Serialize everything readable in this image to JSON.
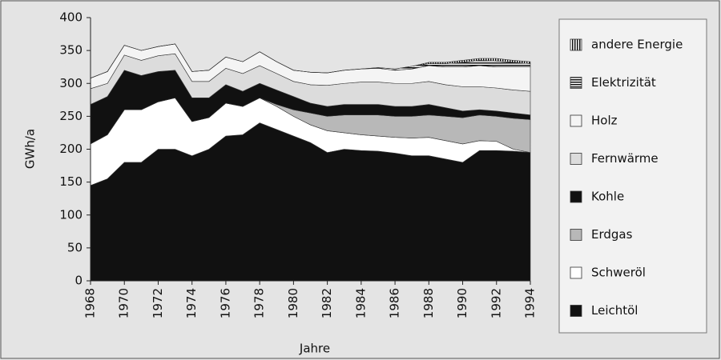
{
  "chart_data": {
    "type": "stacked_area",
    "x_label": "Jahre",
    "y_label": "GWh/a",
    "x": [
      1968,
      1969,
      1970,
      1971,
      1972,
      1973,
      1974,
      1975,
      1976,
      1977,
      1978,
      1979,
      1980,
      1981,
      1982,
      1983,
      1984,
      1985,
      1986,
      1987,
      1988,
      1989,
      1990,
      1991,
      1992,
      1993,
      1994
    ],
    "xlim": [
      1968,
      1994
    ],
    "xticks": [
      1968,
      1970,
      1972,
      1974,
      1976,
      1978,
      1980,
      1982,
      1984,
      1986,
      1988,
      1990,
      1992,
      1994
    ],
    "ylim": [
      0,
      400
    ],
    "yticks": [
      0,
      50,
      100,
      150,
      200,
      250,
      300,
      350,
      400
    ],
    "series": [
      {
        "name": "Leichtöl",
        "color": "#111111",
        "values": [
          145,
          155,
          180,
          180,
          200,
          200,
          190,
          200,
          220,
          222,
          240,
          230,
          220,
          210,
          195,
          200,
          198,
          197,
          194,
          190,
          190,
          185,
          180,
          198,
          198,
          197,
          195
        ]
      },
      {
        "name": "Schweröl",
        "color": "#ffffff",
        "values": [
          63,
          67,
          80,
          80,
          72,
          78,
          52,
          48,
          50,
          43,
          38,
          35,
          30,
          27,
          33,
          25,
          24,
          23,
          24,
          27,
          28,
          28,
          28,
          15,
          14,
          3,
          0
        ]
      },
      {
        "name": "Erdgas",
        "color": "#b8b8b8",
        "values": [
          0,
          0,
          0,
          0,
          0,
          0,
          0,
          0,
          0,
          0,
          0,
          3,
          10,
          18,
          22,
          27,
          30,
          32,
          32,
          33,
          34,
          37,
          40,
          39,
          38,
          47,
          50
        ]
      },
      {
        "name": "Kohle",
        "color": "#111111",
        "values": [
          60,
          58,
          60,
          52,
          46,
          42,
          36,
          30,
          28,
          23,
          22,
          22,
          20,
          15,
          15,
          16,
          16,
          16,
          15,
          15,
          16,
          13,
          10,
          8,
          8,
          8,
          7
        ]
      },
      {
        "name": "Fernwärme",
        "color": "#dcdcdc",
        "values": [
          24,
          20,
          23,
          23,
          24,
          25,
          25,
          25,
          25,
          27,
          27,
          25,
          23,
          28,
          32,
          32,
          34,
          34,
          35,
          35,
          35,
          35,
          37,
          35,
          35,
          35,
          36
        ]
      },
      {
        "name": "Holz",
        "color": "#f4f4f4",
        "values": [
          16,
          18,
          15,
          15,
          14,
          15,
          15,
          17,
          17,
          18,
          21,
          18,
          17,
          19,
          19,
          20,
          20,
          21,
          20,
          22,
          24,
          27,
          30,
          32,
          32,
          35,
          37
        ]
      },
      {
        "name": "Elektrizität",
        "color": "#111111",
        "pattern": "horizontal",
        "values": [
          0,
          0,
          0,
          0,
          0,
          0,
          0,
          0,
          0,
          0,
          0,
          0,
          0,
          0,
          0,
          0,
          0,
          1,
          2,
          4,
          3,
          5,
          7,
          8,
          9,
          7,
          5
        ]
      },
      {
        "name": "andere Energie",
        "color": "#111111",
        "pattern": "vertical",
        "values": [
          0,
          0,
          0,
          0,
          0,
          0,
          0,
          0,
          0,
          0,
          0,
          0,
          0,
          0,
          0,
          0,
          0,
          0,
          0,
          0,
          2,
          2,
          3,
          3,
          4,
          3,
          3
        ]
      }
    ]
  }
}
